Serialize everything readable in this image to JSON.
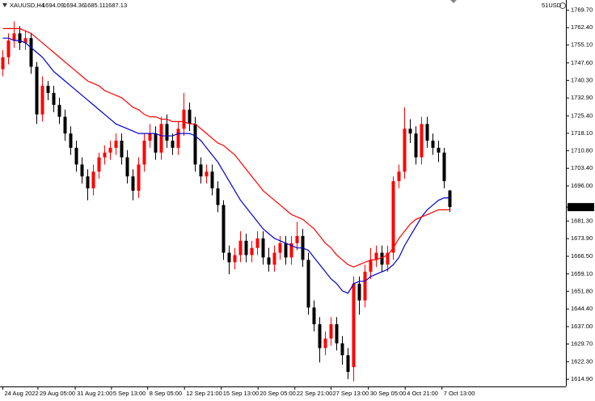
{
  "chart_data": {
    "type": "candlestick",
    "symbol": "XAUUSD,H4",
    "account": "51USD",
    "up_color": "#ff0000",
    "down_color": "#000000",
    "open": [
      1745,
      1750,
      1757,
      1760,
      1756,
      1758,
      1746,
      1726,
      1738,
      1735,
      1730,
      1725,
      1718,
      1712,
      1705,
      1700,
      1695,
      1702,
      1708,
      1710,
      1712,
      1715,
      1708,
      1700,
      1694,
      1705,
      1715,
      1718,
      1710,
      1722,
      1715,
      1712,
      1720,
      1728,
      1722,
      1705,
      1700,
      1702,
      1695,
      1688,
      1668,
      1664,
      1667,
      1673,
      1667,
      1670,
      1674,
      1666,
      1663,
      1668,
      1672,
      1666,
      1672,
      1675,
      1665,
      1645,
      1638,
      1628,
      1632,
      1638,
      1630,
      1625,
      1620,
      1655,
      1648,
      1660,
      1665,
      1668,
      1663,
      1668,
      1698,
      1702,
      1720,
      1718,
      1708,
      1722,
      1715,
      1712,
      1710,
      1694.09
    ],
    "high": [
      1753,
      1760,
      1765,
      1763,
      1761,
      1760,
      1748,
      1742,
      1740,
      1738,
      1733,
      1728,
      1721,
      1715,
      1708,
      1703,
      1705,
      1710,
      1713,
      1715,
      1718,
      1718,
      1711,
      1703,
      1708,
      1718,
      1722,
      1721,
      1725,
      1726,
      1718,
      1723,
      1735,
      1731,
      1725,
      1708,
      1705,
      1705,
      1698,
      1690,
      1671,
      1670,
      1677,
      1676,
      1673,
      1677,
      1677,
      1670,
      1671,
      1675,
      1675,
      1675,
      1681,
      1678,
      1668,
      1648,
      1641,
      1635,
      1641,
      1641,
      1633,
      1628,
      1658,
      1658,
      1663,
      1670,
      1671,
      1671,
      1671,
      1700,
      1705,
      1729,
      1724,
      1721,
      1725,
      1725,
      1718,
      1715,
      1712,
      1694.36
    ],
    "low": [
      1742,
      1747,
      1754,
      1753,
      1753,
      1743,
      1722,
      1723,
      1732,
      1727,
      1722,
      1715,
      1709,
      1702,
      1697,
      1690,
      1692,
      1699,
      1705,
      1707,
      1709,
      1705,
      1697,
      1690,
      1691,
      1702,
      1712,
      1707,
      1707,
      1712,
      1709,
      1709,
      1717,
      1719,
      1702,
      1697,
      1697,
      1692,
      1685,
      1665,
      1659,
      1661,
      1664,
      1664,
      1664,
      1667,
      1663,
      1660,
      1660,
      1665,
      1663,
      1663,
      1669,
      1662,
      1642,
      1635,
      1622,
      1625,
      1629,
      1627,
      1621,
      1615,
      1614,
      1642,
      1645,
      1657,
      1662,
      1660,
      1660,
      1665,
      1695,
      1699,
      1714,
      1705,
      1705,
      1712,
      1709,
      1706,
      1695,
      1685.11
    ],
    "close": [
      1750,
      1757,
      1760,
      1756,
      1758,
      1746,
      1726,
      1738,
      1735,
      1730,
      1725,
      1718,
      1712,
      1705,
      1700,
      1695,
      1702,
      1708,
      1710,
      1712,
      1715,
      1708,
      1700,
      1694,
      1705,
      1715,
      1718,
      1710,
      1722,
      1715,
      1712,
      1720,
      1728,
      1722,
      1705,
      1700,
      1702,
      1695,
      1688,
      1668,
      1664,
      1667,
      1673,
      1667,
      1670,
      1674,
      1666,
      1663,
      1668,
      1672,
      1666,
      1672,
      1675,
      1665,
      1645,
      1638,
      1628,
      1632,
      1638,
      1630,
      1625,
      1618,
      1655,
      1648,
      1660,
      1665,
      1668,
      1663,
      1668,
      1698,
      1702,
      1720,
      1718,
      1708,
      1722,
      1715,
      1712,
      1710,
      1698,
      1687.13
    ],
    "series": [
      {
        "color": "#0000cc",
        "values": [
          1758,
          1758,
          1757,
          1757,
          1756,
          1754,
          1752,
          1750,
          1747,
          1744,
          1742,
          1740,
          1738,
          1736,
          1734,
          1732,
          1730,
          1728,
          1726,
          1724,
          1722,
          1721,
          1720,
          1719,
          1718,
          1718,
          1718,
          1718,
          1717,
          1717,
          1717,
          1718,
          1718,
          1718,
          1717,
          1715,
          1712,
          1709,
          1706,
          1702,
          1698,
          1694,
          1690,
          1687,
          1684,
          1681,
          1678,
          1676,
          1674,
          1673,
          1672,
          1671,
          1670,
          1670,
          1669,
          1666,
          1663,
          1660,
          1657,
          1655,
          1652,
          1651,
          1655,
          1656,
          1656,
          1658,
          1659,
          1660,
          1661,
          1663,
          1666,
          1671,
          1675,
          1679,
          1683,
          1686,
          1688,
          1690,
          1691,
          1691
        ]
      },
      {
        "color": "#ff0000",
        "values": [
          1762,
          1762,
          1762,
          1762,
          1761,
          1760,
          1758,
          1756,
          1754,
          1752,
          1750,
          1748,
          1746,
          1744,
          1742,
          1740,
          1739,
          1738,
          1736,
          1735,
          1734,
          1733,
          1731,
          1729,
          1728,
          1726,
          1725,
          1725,
          1724,
          1724,
          1723,
          1723,
          1723,
          1722,
          1722,
          1720,
          1718,
          1716,
          1714,
          1713,
          1711,
          1709,
          1706,
          1703,
          1700,
          1697,
          1694,
          1692,
          1690,
          1688,
          1686,
          1684,
          1683,
          1682,
          1680,
          1678,
          1675,
          1672,
          1670,
          1667,
          1665,
          1663,
          1662,
          1663,
          1664,
          1665,
          1665,
          1666,
          1667,
          1670,
          1674,
          1677,
          1680,
          1682,
          1683,
          1684,
          1685,
          1686,
          1686,
          1686
        ]
      }
    ],
    "xlim": [
      -0.5,
      99.5
    ],
    "xticks": [
      {
        "value": 0,
        "label": "24 Aug 2022"
      },
      {
        "value": 6.2,
        "label": "29 Aug 05:00"
      },
      {
        "value": 12.8,
        "label": "31 Aug 21:00"
      },
      {
        "value": 19.2,
        "label": "5 Sep 13:00"
      },
      {
        "value": 25.6,
        "label": "8 Sep 05:00"
      },
      {
        "value": 32.1,
        "label": "12 Sep 21:00"
      },
      {
        "value": 38.6,
        "label": "15 Sep 13:00"
      },
      {
        "value": 45.1,
        "label": "20 Sep 05:00"
      },
      {
        "value": 51.6,
        "label": "22 Sep 21:00"
      },
      {
        "value": 58,
        "label": "27 Sep 13:00"
      },
      {
        "value": 64.6,
        "label": "30 Sep 05:00"
      },
      {
        "value": 71.1,
        "label": "4 Oct 21:00"
      },
      {
        "value": 77.6,
        "label": "7 Oct 13:00"
      }
    ],
    "ylim": [
      1611.9,
      1774.0
    ],
    "yticks": [
      {
        "value": 1769.7,
        "label": "1769.70"
      },
      {
        "value": 1762.4,
        "label": "1762.40"
      },
      {
        "value": 1755.1,
        "label": "1755.10"
      },
      {
        "value": 1747.6,
        "label": "1747.60"
      },
      {
        "value": 1740.3,
        "label": "1740.30"
      },
      {
        "value": 1732.9,
        "label": "1732.90"
      },
      {
        "value": 1725.4,
        "label": "1725.40"
      },
      {
        "value": 1718.1,
        "label": "1718.10"
      },
      {
        "value": 1710.8,
        "label": "1710.80"
      },
      {
        "value": 1703.4,
        "label": "1703.40"
      },
      {
        "value": 1696,
        "label": "1696.00"
      },
      {
        "value": 1681.3,
        "label": "1681.30"
      },
      {
        "value": 1673.9,
        "label": "1673.90"
      },
      {
        "value": 1666.5,
        "label": "1666.50"
      },
      {
        "value": 1659.1,
        "label": "1659.10"
      },
      {
        "value": 1651.8,
        "label": "1651.80"
      },
      {
        "value": 1644.4,
        "label": "1644.40"
      },
      {
        "value": 1637,
        "label": "1637.00"
      },
      {
        "value": 1629.7,
        "label": "1629.70"
      },
      {
        "value": 1622.3,
        "label": "1622.30"
      },
      {
        "value": 1614.9,
        "label": "1614.90"
      }
    ]
  }
}
